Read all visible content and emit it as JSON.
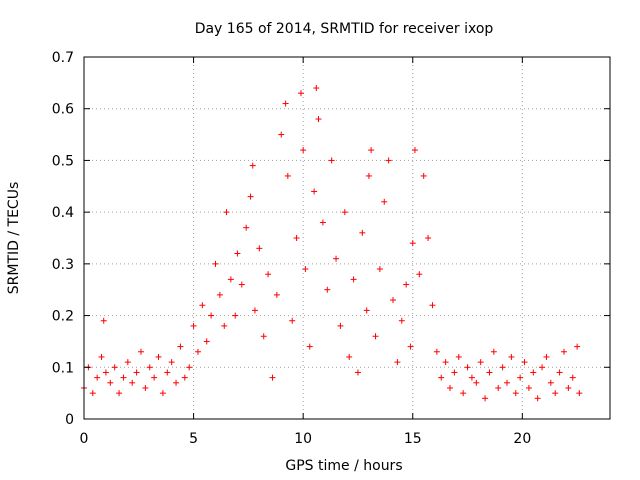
{
  "chart_data": {
    "type": "scatter",
    "title": "Day 165 of 2014, SRMTID for receiver ixop",
    "xlabel": "GPS time / hours",
    "ylabel": "SRMTID / TECUs",
    "xlim": [
      0,
      24
    ],
    "ylim": [
      0,
      0.7
    ],
    "grid": true,
    "marker": "+",
    "marker_color": "#ff0000",
    "xticks": [
      0,
      5,
      10,
      15,
      20
    ],
    "xtick_labels": [
      "0",
      "5",
      "10",
      "15",
      "20"
    ],
    "yticks": [
      0,
      0.1,
      0.2,
      0.3,
      0.4,
      0.5,
      0.6,
      0.7
    ],
    "ytick_labels": [
      "0",
      "0.1",
      "0.2",
      "0.3",
      "0.4",
      "0.5",
      "0.6",
      "0.7"
    ],
    "series": [
      {
        "name": "SRMTID",
        "x": [
          0.0,
          0.2,
          0.4,
          0.6,
          0.8,
          0.9,
          1.0,
          1.2,
          1.4,
          1.6,
          1.8,
          2.0,
          2.2,
          2.4,
          2.6,
          2.8,
          3.0,
          3.2,
          3.4,
          3.6,
          3.8,
          4.0,
          4.2,
          4.4,
          4.6,
          4.8,
          5.0,
          5.2,
          5.4,
          5.6,
          5.8,
          6.0,
          6.2,
          6.4,
          6.5,
          6.7,
          6.9,
          7.0,
          7.2,
          7.4,
          7.6,
          7.7,
          7.8,
          8.0,
          8.2,
          8.4,
          8.6,
          8.8,
          9.0,
          9.2,
          9.3,
          9.5,
          9.7,
          9.9,
          10.0,
          10.1,
          10.3,
          10.5,
          10.6,
          10.7,
          10.9,
          11.1,
          11.3,
          11.5,
          11.7,
          11.9,
          12.1,
          12.3,
          12.5,
          12.7,
          12.9,
          13.0,
          13.1,
          13.3,
          13.5,
          13.7,
          13.9,
          14.1,
          14.3,
          14.5,
          14.7,
          14.9,
          15.0,
          15.1,
          15.3,
          15.5,
          15.7,
          15.9,
          16.1,
          16.3,
          16.5,
          16.7,
          16.9,
          17.1,
          17.3,
          17.5,
          17.7,
          17.9,
          18.1,
          18.3,
          18.5,
          18.7,
          18.9,
          19.1,
          19.3,
          19.5,
          19.7,
          19.9,
          20.1,
          20.3,
          20.5,
          20.7,
          20.9,
          21.1,
          21.3,
          21.5,
          21.7,
          21.9,
          22.1,
          22.3,
          22.5,
          22.6
        ],
        "y": [
          0.06,
          0.1,
          0.05,
          0.08,
          0.12,
          0.19,
          0.09,
          0.07,
          0.1,
          0.05,
          0.08,
          0.11,
          0.07,
          0.09,
          0.13,
          0.06,
          0.1,
          0.08,
          0.12,
          0.05,
          0.09,
          0.11,
          0.07,
          0.14,
          0.08,
          0.1,
          0.18,
          0.13,
          0.22,
          0.15,
          0.2,
          0.3,
          0.24,
          0.18,
          0.4,
          0.27,
          0.2,
          0.32,
          0.26,
          0.37,
          0.43,
          0.49,
          0.21,
          0.33,
          0.16,
          0.28,
          0.08,
          0.24,
          0.55,
          0.61,
          0.47,
          0.19,
          0.35,
          0.63,
          0.52,
          0.29,
          0.14,
          0.44,
          0.64,
          0.58,
          0.38,
          0.25,
          0.5,
          0.31,
          0.18,
          0.4,
          0.12,
          0.27,
          0.09,
          0.36,
          0.21,
          0.47,
          0.52,
          0.16,
          0.29,
          0.42,
          0.5,
          0.23,
          0.11,
          0.19,
          0.26,
          0.14,
          0.34,
          0.52,
          0.28,
          0.47,
          0.35,
          0.22,
          0.13,
          0.08,
          0.11,
          0.06,
          0.09,
          0.12,
          0.05,
          0.1,
          0.08,
          0.07,
          0.11,
          0.04,
          0.09,
          0.13,
          0.06,
          0.1,
          0.07,
          0.12,
          0.05,
          0.08,
          0.11,
          0.06,
          0.09,
          0.04,
          0.1,
          0.12,
          0.07,
          0.05,
          0.09,
          0.13,
          0.06,
          0.08,
          0.14,
          0.05
        ]
      }
    ]
  }
}
